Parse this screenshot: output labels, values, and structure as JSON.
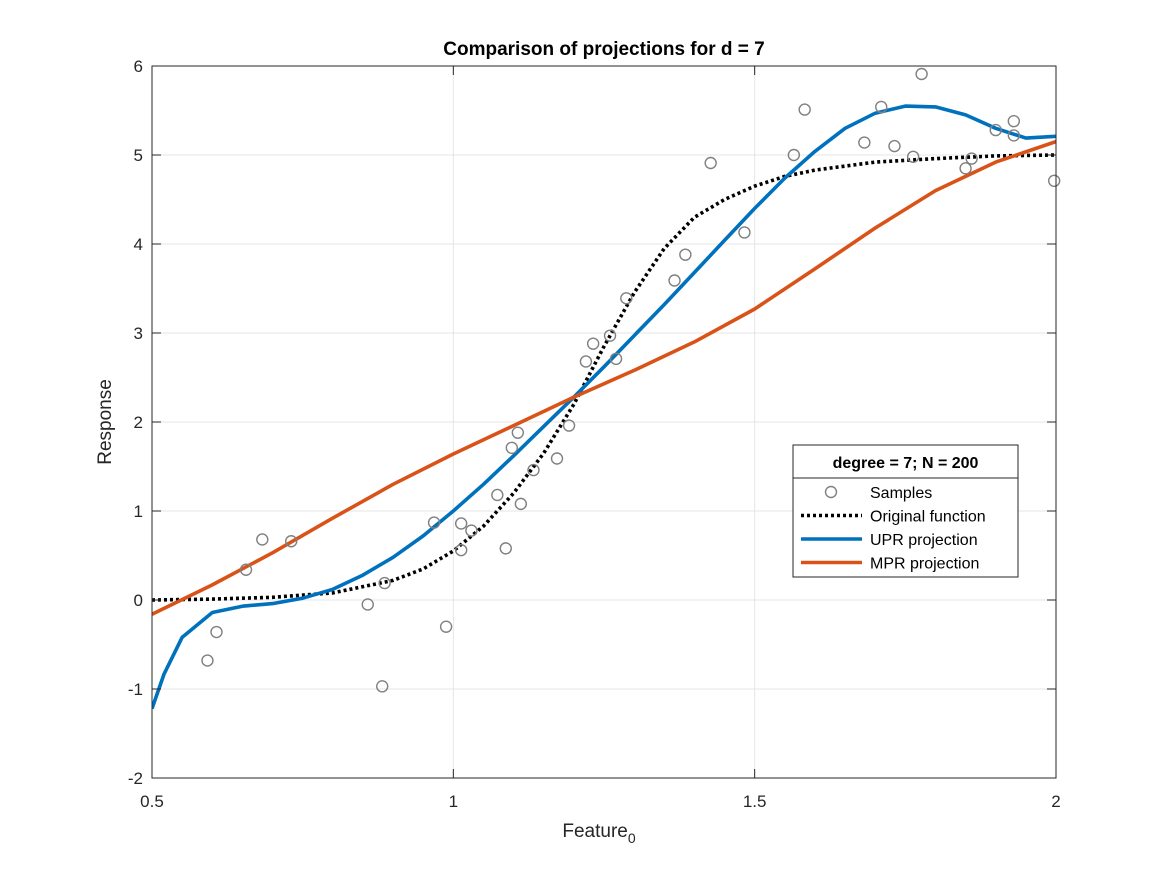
{
  "chart_data": {
    "type": "line",
    "title": "Comparison of projections for d = 7",
    "xlabel_main": "Feature",
    "xlabel_sub": "0",
    "ylabel": "Response",
    "xlim": [
      0.5,
      2
    ],
    "ylim": [
      -2,
      6
    ],
    "xticks": [
      0.5,
      1,
      1.5,
      2
    ],
    "xtick_labels": [
      "0.5",
      "1",
      "1.5",
      "2"
    ],
    "yticks": [
      -2,
      -1,
      0,
      1,
      2,
      3,
      4,
      5,
      6
    ],
    "ytick_labels": [
      "-2",
      "-1",
      "0",
      "1",
      "2",
      "3",
      "4",
      "5",
      "6"
    ],
    "grid": true,
    "legend": {
      "title": "degree = 7; N = 200",
      "placement": "right",
      "entries": [
        "Samples",
        "Original function",
        "UPR projection",
        "MPR projection"
      ]
    },
    "series": [
      {
        "name": "Samples",
        "style": "markers",
        "color": "#808080",
        "points": [
          [
            0.592,
            -0.68
          ],
          [
            0.607,
            -0.36
          ],
          [
            0.656,
            0.34
          ],
          [
            0.683,
            0.68
          ],
          [
            0.731,
            0.66
          ],
          [
            0.858,
            -0.05
          ],
          [
            0.882,
            -0.97
          ],
          [
            0.886,
            0.19
          ],
          [
            0.968,
            0.87
          ],
          [
            0.988,
            -0.3
          ],
          [
            1.013,
            0.56
          ],
          [
            1.013,
            0.86
          ],
          [
            1.03,
            0.78
          ],
          [
            1.073,
            1.18
          ],
          [
            1.087,
            0.58
          ],
          [
            1.097,
            1.71
          ],
          [
            1.107,
            1.88
          ],
          [
            1.112,
            1.08
          ],
          [
            1.133,
            1.46
          ],
          [
            1.172,
            1.59
          ],
          [
            1.192,
            1.96
          ],
          [
            1.22,
            2.68
          ],
          [
            1.232,
            2.88
          ],
          [
            1.26,
            2.97
          ],
          [
            1.27,
            2.71
          ],
          [
            1.287,
            3.39
          ],
          [
            1.367,
            3.59
          ],
          [
            1.385,
            3.88
          ],
          [
            1.427,
            4.91
          ],
          [
            1.483,
            4.13
          ],
          [
            1.565,
            5.0
          ],
          [
            1.583,
            5.51
          ],
          [
            1.682,
            5.14
          ],
          [
            1.71,
            5.54
          ],
          [
            1.732,
            5.1
          ],
          [
            1.763,
            4.98
          ],
          [
            1.777,
            5.91
          ],
          [
            1.85,
            4.85
          ],
          [
            1.86,
            4.96
          ],
          [
            1.9,
            5.28
          ],
          [
            1.93,
            5.38
          ],
          [
            1.93,
            5.22
          ],
          [
            1.997,
            4.71
          ]
        ]
      },
      {
        "name": "Original function",
        "style": "dotted",
        "color": "#000000",
        "x": [
          0.5,
          0.6,
          0.7,
          0.8,
          0.9,
          0.95,
          1.0,
          1.05,
          1.1,
          1.15,
          1.2,
          1.25,
          1.3,
          1.35,
          1.4,
          1.45,
          1.5,
          1.55,
          1.6,
          1.7,
          1.8,
          1.9,
          2.0
        ],
        "y": [
          0.0,
          0.01,
          0.03,
          0.08,
          0.22,
          0.35,
          0.55,
          0.83,
          1.2,
          1.65,
          2.2,
          2.85,
          3.45,
          3.95,
          4.3,
          4.5,
          4.65,
          4.76,
          4.83,
          4.92,
          4.96,
          4.99,
          5.0
        ]
      },
      {
        "name": "UPR projection",
        "style": "solid",
        "color": "#0072BD",
        "x": [
          0.5,
          0.52,
          0.55,
          0.6,
          0.65,
          0.7,
          0.75,
          0.8,
          0.85,
          0.9,
          0.95,
          1.0,
          1.05,
          1.1,
          1.15,
          1.2,
          1.25,
          1.3,
          1.35,
          1.4,
          1.45,
          1.5,
          1.55,
          1.6,
          1.65,
          1.7,
          1.75,
          1.8,
          1.85,
          1.9,
          1.95,
          2.0
        ],
        "y": [
          -1.22,
          -0.83,
          -0.42,
          -0.14,
          -0.07,
          -0.04,
          0.02,
          0.12,
          0.28,
          0.48,
          0.72,
          1.0,
          1.3,
          1.62,
          1.95,
          2.28,
          2.62,
          2.97,
          3.32,
          3.68,
          4.04,
          4.4,
          4.74,
          5.04,
          5.3,
          5.47,
          5.55,
          5.54,
          5.45,
          5.3,
          5.19,
          5.21
        ]
      },
      {
        "name": "MPR projection",
        "style": "solid",
        "color": "#D95319",
        "x": [
          0.5,
          0.6,
          0.7,
          0.8,
          0.9,
          1.0,
          1.1,
          1.2,
          1.3,
          1.4,
          1.5,
          1.6,
          1.7,
          1.8,
          1.9,
          2.0
        ],
        "y": [
          -0.16,
          0.17,
          0.53,
          0.92,
          1.3,
          1.64,
          1.96,
          2.28,
          2.58,
          2.9,
          3.27,
          3.72,
          4.18,
          4.6,
          4.92,
          5.15
        ]
      }
    ]
  }
}
